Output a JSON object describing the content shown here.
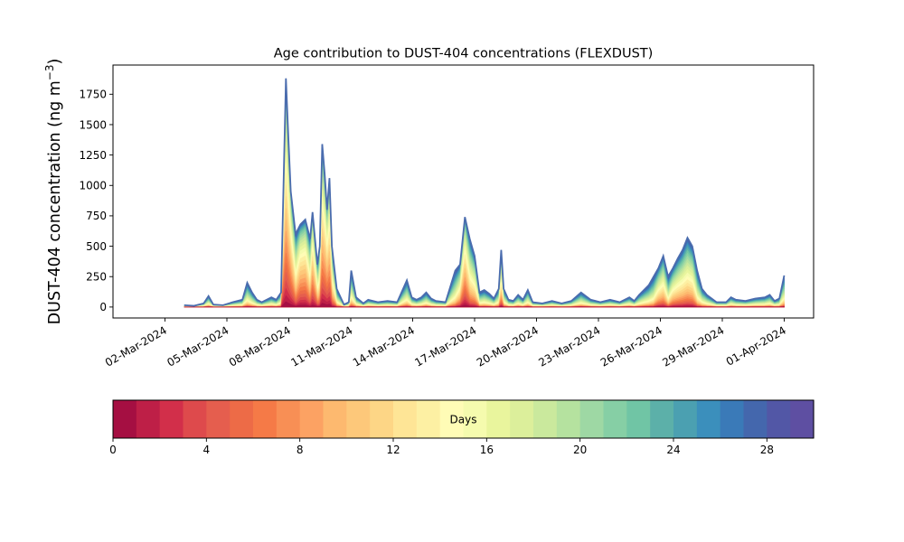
{
  "chart_data": {
    "type": "area",
    "title": "Age contribution to DUST-404 concentrations (FLEXDUST)",
    "ylabel": "DUST-404 concentration (ng m",
    "ylabel_sup": "−3",
    "ylabel_close": ")",
    "x_start": "2024-02-29",
    "x_end": "2024-04-01",
    "ylim": [
      -90,
      1990
    ],
    "yticks": [
      0,
      250,
      500,
      750,
      1000,
      1250,
      1500,
      1750
    ],
    "ytick_labels": [
      "0",
      "250",
      "500",
      "750",
      "1000",
      "1250",
      "1500",
      "1750"
    ],
    "xticks": [
      "02-Mar-2024",
      "05-Mar-2024",
      "08-Mar-2024",
      "11-Mar-2024",
      "14-Mar-2024",
      "17-Mar-2024",
      "20-Mar-2024",
      "23-Mar-2024",
      "26-Mar-2024",
      "29-Mar-2024",
      "01-Apr-2024"
    ],
    "grid": false,
    "total_series": {
      "name": "Total",
      "points": [
        [
          "2024-03-01 00:00",
          15
        ],
        [
          "2024-03-01 12:00",
          10
        ],
        [
          "2024-03-02 00:00",
          30
        ],
        [
          "2024-03-02 06:00",
          90
        ],
        [
          "2024-03-02 12:00",
          20
        ],
        [
          "2024-03-03 00:00",
          15
        ],
        [
          "2024-03-03 12:00",
          40
        ],
        [
          "2024-03-04 00:00",
          60
        ],
        [
          "2024-03-04 06:00",
          200
        ],
        [
          "2024-03-04 12:00",
          120
        ],
        [
          "2024-03-04 18:00",
          60
        ],
        [
          "2024-03-05 00:00",
          40
        ],
        [
          "2024-03-05 12:00",
          80
        ],
        [
          "2024-03-05 18:00",
          60
        ],
        [
          "2024-03-06 00:00",
          120
        ],
        [
          "2024-03-06 06:00",
          1880
        ],
        [
          "2024-03-06 09:00",
          1400
        ],
        [
          "2024-03-06 12:00",
          950
        ],
        [
          "2024-03-06 18:00",
          600
        ],
        [
          "2024-03-07 00:00",
          680
        ],
        [
          "2024-03-07 06:00",
          720
        ],
        [
          "2024-03-07 12:00",
          560
        ],
        [
          "2024-03-07 15:00",
          780
        ],
        [
          "2024-03-07 21:00",
          350
        ],
        [
          "2024-03-08 00:00",
          500
        ],
        [
          "2024-03-08 03:00",
          1340
        ],
        [
          "2024-03-08 06:00",
          1100
        ],
        [
          "2024-03-08 09:00",
          800
        ],
        [
          "2024-03-08 12:00",
          1060
        ],
        [
          "2024-03-08 15:00",
          500
        ],
        [
          "2024-03-08 21:00",
          150
        ],
        [
          "2024-03-09 06:00",
          20
        ],
        [
          "2024-03-09 12:00",
          40
        ],
        [
          "2024-03-09 15:00",
          300
        ],
        [
          "2024-03-09 21:00",
          80
        ],
        [
          "2024-03-10 06:00",
          30
        ],
        [
          "2024-03-10 12:00",
          60
        ],
        [
          "2024-03-11 00:00",
          40
        ],
        [
          "2024-03-11 12:00",
          50
        ],
        [
          "2024-03-12 00:00",
          40
        ],
        [
          "2024-03-12 06:00",
          130
        ],
        [
          "2024-03-12 12:00",
          220
        ],
        [
          "2024-03-12 18:00",
          80
        ],
        [
          "2024-03-13 00:00",
          60
        ],
        [
          "2024-03-13 06:00",
          80
        ],
        [
          "2024-03-13 12:00",
          120
        ],
        [
          "2024-03-13 18:00",
          70
        ],
        [
          "2024-03-14 00:00",
          50
        ],
        [
          "2024-03-14 12:00",
          40
        ],
        [
          "2024-03-15 00:00",
          300
        ],
        [
          "2024-03-15 06:00",
          350
        ],
        [
          "2024-03-15 12:00",
          740
        ],
        [
          "2024-03-15 18:00",
          560
        ],
        [
          "2024-03-16 00:00",
          420
        ],
        [
          "2024-03-16 06:00",
          120
        ],
        [
          "2024-03-16 12:00",
          140
        ],
        [
          "2024-03-16 18:00",
          110
        ],
        [
          "2024-03-17 00:00",
          70
        ],
        [
          "2024-03-17 06:00",
          150
        ],
        [
          "2024-03-17 09:00",
          470
        ],
        [
          "2024-03-17 12:00",
          150
        ],
        [
          "2024-03-17 18:00",
          60
        ],
        [
          "2024-03-18 00:00",
          50
        ],
        [
          "2024-03-18 06:00",
          100
        ],
        [
          "2024-03-18 12:00",
          60
        ],
        [
          "2024-03-18 18:00",
          140
        ],
        [
          "2024-03-19 00:00",
          40
        ],
        [
          "2024-03-19 12:00",
          30
        ],
        [
          "2024-03-20 00:00",
          50
        ],
        [
          "2024-03-20 12:00",
          30
        ],
        [
          "2024-03-21 00:00",
          50
        ],
        [
          "2024-03-21 12:00",
          120
        ],
        [
          "2024-03-22 00:00",
          60
        ],
        [
          "2024-03-22 12:00",
          40
        ],
        [
          "2024-03-23 00:00",
          60
        ],
        [
          "2024-03-23 12:00",
          40
        ],
        [
          "2024-03-24 00:00",
          80
        ],
        [
          "2024-03-24 06:00",
          50
        ],
        [
          "2024-03-24 12:00",
          100
        ],
        [
          "2024-03-25 00:00",
          180
        ],
        [
          "2024-03-25 06:00",
          250
        ],
        [
          "2024-03-25 12:00",
          320
        ],
        [
          "2024-03-25 18:00",
          420
        ],
        [
          "2024-03-26 00:00",
          250
        ],
        [
          "2024-03-26 06:00",
          320
        ],
        [
          "2024-03-26 12:00",
          400
        ],
        [
          "2024-03-26 18:00",
          470
        ],
        [
          "2024-03-27 00:00",
          570
        ],
        [
          "2024-03-27 06:00",
          500
        ],
        [
          "2024-03-27 12:00",
          300
        ],
        [
          "2024-03-27 18:00",
          150
        ],
        [
          "2024-03-28 00:00",
          100
        ],
        [
          "2024-03-28 06:00",
          70
        ],
        [
          "2024-03-28 12:00",
          40
        ],
        [
          "2024-03-29 00:00",
          40
        ],
        [
          "2024-03-29 06:00",
          80
        ],
        [
          "2024-03-29 12:00",
          60
        ],
        [
          "2024-03-30 00:00",
          50
        ],
        [
          "2024-03-30 12:00",
          70
        ],
        [
          "2024-03-31 00:00",
          80
        ],
        [
          "2024-03-31 06:00",
          100
        ],
        [
          "2024-03-31 12:00",
          50
        ],
        [
          "2024-03-31 18:00",
          70
        ],
        [
          "2024-04-01 00:00",
          260
        ]
      ]
    },
    "colorbar": {
      "label": "Days",
      "min": 0,
      "max": 30,
      "ticks": [
        0,
        4,
        8,
        12,
        16,
        20,
        24,
        28
      ],
      "tick_labels": [
        "0",
        "4",
        "8",
        "12",
        "16",
        "20",
        "24",
        "28"
      ],
      "colors": [
        "#a50f42",
        "#be1f47",
        "#d22f4a",
        "#de4a4c",
        "#e55e4e",
        "#ed6b47",
        "#f57a47",
        "#f88f55",
        "#fca263",
        "#fdb96f",
        "#fdc87a",
        "#fdd686",
        "#fee596",
        "#fdf0a3",
        "#fffcb6",
        "#f5fbae",
        "#e9f59d",
        "#dcef9b",
        "#cae99d",
        "#b5e29f",
        "#9ed8a4",
        "#86cfa5",
        "#70c5a5",
        "#5cb0a9",
        "#4ba0b1",
        "#3b8fbc",
        "#3a7ab8",
        "#4467ad",
        "#5257a6",
        "#5e4fa2"
      ]
    }
  }
}
